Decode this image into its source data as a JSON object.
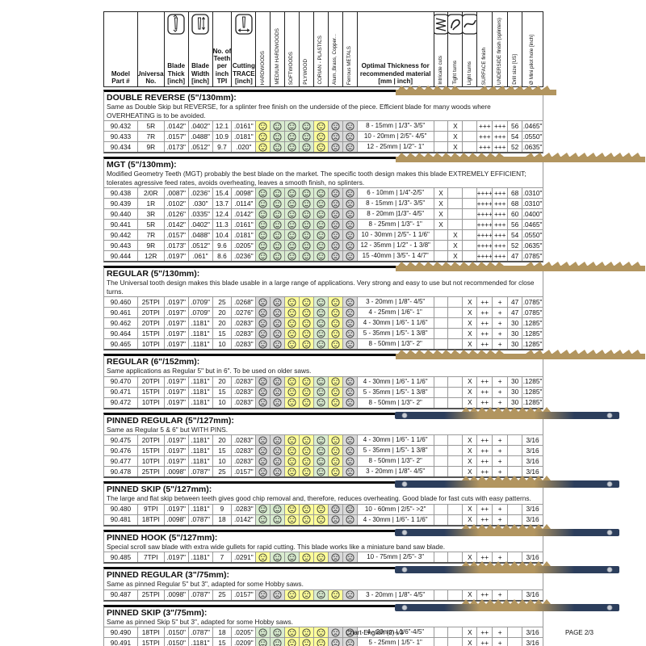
{
  "footer": {
    "left": "Chart-English (2)-v3",
    "right": "PAGE 2/3"
  },
  "header": {
    "left_columns": [
      {
        "id": "model",
        "label": "Model\nPart #"
      },
      {
        "id": "universal",
        "label": "Universal\nNo."
      },
      {
        "id": "thick",
        "label": "Blade\nThick\n[inch]",
        "icon": "blade-thickness-icon"
      },
      {
        "id": "width",
        "label": "Blade\nWidth\n[inch]",
        "icon": "blade-width-icon"
      },
      {
        "id": "tpi",
        "label": "No. of\nTeeth\nper\ninch\nTPI"
      },
      {
        "id": "trace",
        "label": "Cutting\nTRACE\n[inch]",
        "icon": "cutting-trace-icon"
      }
    ],
    "material_columns": [
      "HARDWOODS",
      "MEDIUM HARDWOODS",
      "SOFTWOODS",
      "PLYWOOD",
      "CORIAN - PLASTICS",
      "Alum.,Brass, Copper...",
      "Ferrous METALS"
    ],
    "optimal_label": "Optimal Thickness for\nrecommended material\n[mm | inch]",
    "right_columns": [
      {
        "id": "intricate",
        "label": "Intricate cuts",
        "icon": "intricate-cuts-icon"
      },
      {
        "id": "tight",
        "label": "Tight turns",
        "icon": "tight-turns-icon"
      },
      {
        "id": "light",
        "label": "Light turns",
        "icon": "light-turns-icon"
      },
      {
        "id": "surface",
        "label": "SURFACE finish"
      },
      {
        "id": "underside",
        "label": "UNDERSIDE finish (splinters)"
      },
      {
        "id": "drill",
        "label": "Drill size [US]"
      },
      {
        "id": "pilot",
        "label": "Ø Mini pilot hole [inch]"
      }
    ]
  },
  "face_legend": {
    "g": "green-smiley-good",
    "y": "yellow-neutral-ok",
    "x": "gray-frown-not-recommended"
  },
  "colors": {
    "face_green": "#d9ecd0",
    "face_yellow": "#ffff99",
    "face_gray": "#d9d9d9",
    "blade_tan": "#b2955f",
    "blade_navy": "#2c3e5c",
    "pin_gray": "#c7ccd4"
  },
  "sections": [
    {
      "title": "DOUBLE REVERSE (5\"/130mm):",
      "desc": "Same as Double Skip but REVERSE, for a splinter free finish on the underside of the piece. Efficient blade for many woods where OVERHEATING is to be avoided.",
      "blade": "plain-short-blade-image",
      "rows": [
        {
          "model": "90.432",
          "universal": "5R",
          "thick": ".0142\"",
          "width": ".0402\"",
          "tpi": "12.1",
          "trace": ".0161\"",
          "faces": [
            "y",
            "g",
            "g",
            "g",
            "y",
            "x",
            "x"
          ],
          "range": "8 - 15mm | 1/3\"- 3/5\"",
          "turn": "tight",
          "surface": "+++",
          "underside": "+++",
          "drill": "56",
          "pilot": ".0465\""
        },
        {
          "model": "90.433",
          "universal": "7R",
          "thick": ".0157\"",
          "width": ".0488\"",
          "tpi": "10.9",
          "trace": ".0181\"",
          "faces": [
            "y",
            "g",
            "g",
            "g",
            "y",
            "x",
            "x"
          ],
          "range": "10 - 20mm | 2/5\"- 4/5\"",
          "turn": "tight",
          "surface": "+++",
          "underside": "+++",
          "drill": "54",
          "pilot": ".0550\""
        },
        {
          "model": "90.434",
          "universal": "9R",
          "thick": ".0173\"",
          "width": ".0512\"",
          "tpi": "9.7",
          "trace": ".020\"",
          "faces": [
            "y",
            "g",
            "g",
            "g",
            "y",
            "x",
            "x"
          ],
          "range": "12 - 25mm | 1/2\"- 1\"",
          "turn": "tight",
          "surface": "+++",
          "underside": "+++",
          "drill": "52",
          "pilot": ".0635\""
        }
      ]
    },
    {
      "title": "MGT (5\"/130mm):",
      "desc": "Modified Geometry Teeth (MGT) probably the best blade on the market. The specific tooth design makes this blade EXTREMELY EFFICIENT; tolerates agressive feed rates, avoids overheating, leaves a smooth finish, no splinters.",
      "blade": "plain-blade-image",
      "rows": [
        {
          "model": "90.438",
          "universal": "2/0R",
          "thick": ".0087\"",
          "width": ".0236\"",
          "tpi": "15.4",
          "trace": ".0098\"",
          "faces": [
            "g",
            "g",
            "g",
            "g",
            "g",
            "x",
            "x"
          ],
          "range": "6 - 10mm | 1/4\"-2/5\"",
          "turn": "intricate",
          "surface": "++++",
          "underside": "+++",
          "drill": "68",
          "pilot": ".0310\""
        },
        {
          "model": "90.439",
          "universal": "1R",
          "thick": ".0102\"",
          "width": ".030\"",
          "tpi": "13.7",
          "trace": ".0114\"",
          "faces": [
            "g",
            "g",
            "g",
            "g",
            "g",
            "x",
            "x"
          ],
          "range": "8 - 15mm | 1/3\"- 3/5\"",
          "turn": "intricate",
          "surface": "++++",
          "underside": "+++",
          "drill": "68",
          "pilot": ".0310\""
        },
        {
          "model": "90.440",
          "universal": "3R",
          "thick": ".0126\"",
          "width": ".0335\"",
          "tpi": "12.4",
          "trace": ".0142\"",
          "faces": [
            "g",
            "g",
            "g",
            "g",
            "g",
            "x",
            "x"
          ],
          "range": "8 - 20mm |1/3\"- 4/5\"",
          "turn": "intricate",
          "surface": "++++",
          "underside": "+++",
          "drill": "60",
          "pilot": ".0400\""
        },
        {
          "model": "90.441",
          "universal": "5R",
          "thick": ".0142\"",
          "width": ".0402\"",
          "tpi": "11.3",
          "trace": ".0161\"",
          "faces": [
            "g",
            "g",
            "g",
            "g",
            "g",
            "x",
            "x"
          ],
          "range": "8 - 25mm | 1/3\"- 1\"",
          "turn": "intricate",
          "surface": "++++",
          "underside": "+++",
          "drill": "56",
          "pilot": ".0465\""
        },
        {
          "model": "90.442",
          "universal": "7R",
          "thick": ".0157\"",
          "width": ".0488\"",
          "tpi": "10.4",
          "trace": ".0181\"",
          "faces": [
            "g",
            "g",
            "g",
            "g",
            "g",
            "x",
            "x"
          ],
          "range": "10 - 30mm | 2/5\"- 1 1/6\"",
          "turn": "tight",
          "surface": "++++",
          "underside": "+++",
          "drill": "54",
          "pilot": ".0550\""
        },
        {
          "model": "90.443",
          "universal": "9R",
          "thick": ".0173\"",
          "width": ".0512\"",
          "tpi": "9.6",
          "trace": ".0205\"",
          "faces": [
            "g",
            "g",
            "g",
            "g",
            "g",
            "x",
            "x"
          ],
          "range": "12 - 35mm | 1/2\" - 1 3/8\"",
          "turn": "tight",
          "surface": "++++",
          "underside": "+++",
          "drill": "52",
          "pilot": ".0635\""
        },
        {
          "model": "90.444",
          "universal": "12R",
          "thick": ".0197\"",
          "width": ".061\"",
          "tpi": "8.6",
          "trace": ".0236\"",
          "faces": [
            "g",
            "g",
            "g",
            "g",
            "g",
            "x",
            "x"
          ],
          "range": "15 -40mm | 3/5\"- 1 4/7\"",
          "turn": "tight",
          "surface": "++++",
          "underside": "+++",
          "drill": "47",
          "pilot": ".0785\""
        }
      ]
    },
    {
      "title": "REGULAR (5\"/130mm):",
      "desc": "The Universal tooth design makes this blade usable in a large range of applications. Very strong and easy to use but not recommended for close turns.",
      "blade": "plain-blade-image",
      "rows": [
        {
          "model": "90.460",
          "universal": "25TPI",
          "thick": ".0197\"",
          "width": ".0709\"",
          "tpi": "25",
          "trace": ".0268\"",
          "faces": [
            "x",
            "x",
            "y",
            "y",
            "g",
            "y",
            "x"
          ],
          "range": "3 - 20mm | 1/8\"- 4/5\"",
          "turn": "light",
          "surface": "++",
          "underside": "+",
          "drill": "47",
          "pilot": ".0785\""
        },
        {
          "model": "90.461",
          "universal": "20TPI",
          "thick": ".0197\"",
          "width": ".0709\"",
          "tpi": "20",
          "trace": ".0276\"",
          "faces": [
            "x",
            "x",
            "y",
            "y",
            "g",
            "y",
            "x"
          ],
          "range": "4 - 25mm | 1/6\"- 1\"",
          "turn": "light",
          "surface": "++",
          "underside": "+",
          "drill": "47",
          "pilot": ".0785\""
        },
        {
          "model": "90.462",
          "universal": "20TPI",
          "thick": ".0197\"",
          "width": ".1181\"",
          "tpi": "20",
          "trace": ".0283\"",
          "faces": [
            "x",
            "x",
            "y",
            "y",
            "g",
            "y",
            "x"
          ],
          "range": "4 - 30mm | 1/6\"- 1 1/6\"",
          "turn": "light",
          "surface": "++",
          "underside": "+",
          "drill": "30",
          "pilot": ".1285\""
        },
        {
          "model": "90.464",
          "universal": "15TPI",
          "thick": ".0197\"",
          "width": ".1181\"",
          "tpi": "15",
          "trace": ".0283\"",
          "faces": [
            "x",
            "x",
            "y",
            "y",
            "g",
            "y",
            "x"
          ],
          "range": "5 - 35mm | 1/5\"- 1 3/8\"",
          "turn": "light",
          "surface": "++",
          "underside": "+",
          "drill": "30",
          "pilot": ".1285\""
        },
        {
          "model": "90.465",
          "universal": "10TPI",
          "thick": ".0197\"",
          "width": ".1181\"",
          "tpi": "10",
          "trace": ".0283\"",
          "faces": [
            "x",
            "x",
            "y",
            "y",
            "g",
            "y",
            "x"
          ],
          "range": "8 - 50mm | 1/3\"- 2\"",
          "turn": "light",
          "surface": "++",
          "underside": "+",
          "drill": "30",
          "pilot": ".1285\""
        }
      ]
    },
    {
      "title": "REGULAR (6\"/152mm):",
      "desc": "Same applications as Regular 5\" but in 6\". To be used on older saws.",
      "blade": "plain-blade-image",
      "rows": [
        {
          "model": "90.470",
          "universal": "20TPI",
          "thick": ".0197\"",
          "width": ".1181\"",
          "tpi": "20",
          "trace": ".0283\"",
          "faces": [
            "x",
            "x",
            "y",
            "y",
            "g",
            "y",
            "x"
          ],
          "range": "4 - 30mm | 1/6\"- 1 1/6\"",
          "turn": "light",
          "surface": "++",
          "underside": "+",
          "drill": "30",
          "pilot": ".1285\""
        },
        {
          "model": "90.471",
          "universal": "15TPI",
          "thick": ".0197\"",
          "width": ".1181\"",
          "tpi": "15",
          "trace": ".0283\"",
          "faces": [
            "x",
            "x",
            "y",
            "y",
            "g",
            "y",
            "x"
          ],
          "range": "5 - 35mm | 1/5\"- 1 3/8\"",
          "turn": "light",
          "surface": "++",
          "underside": "+",
          "drill": "30",
          "pilot": ".1285\""
        },
        {
          "model": "90.472",
          "universal": "10TPI",
          "thick": ".0197\"",
          "width": ".1181\"",
          "tpi": "10",
          "trace": ".0283\"",
          "faces": [
            "x",
            "x",
            "y",
            "y",
            "g",
            "y",
            "x"
          ],
          "range": "8 - 50mm | 1/3\"- 2\"",
          "turn": "light",
          "surface": "++",
          "underside": "+",
          "drill": "30",
          "pilot": ".1285\""
        }
      ]
    },
    {
      "title": "PINNED REGULAR (5\"/127mm):",
      "desc": "Same as Regular 5 & 6\" but WITH PINS.",
      "blade": "pinned-blade-image",
      "rows": [
        {
          "model": "90.475",
          "universal": "20TPI",
          "thick": ".0197\"",
          "width": ".1181\"",
          "tpi": "20",
          "trace": ".0283\"",
          "faces": [
            "x",
            "x",
            "y",
            "y",
            "g",
            "y",
            "x"
          ],
          "range": "4 - 30mm | 1/6\"- 1 1/6\"",
          "turn": "light",
          "surface": "++",
          "underside": "+",
          "drill": "",
          "pilot": "3/16"
        },
        {
          "model": "90.476",
          "universal": "15TPI",
          "thick": ".0197\"",
          "width": ".1181\"",
          "tpi": "15",
          "trace": ".0283\"",
          "faces": [
            "x",
            "x",
            "y",
            "y",
            "g",
            "y",
            "x"
          ],
          "range": "5 - 35mm | 1/5\"- 1 3/8\"",
          "turn": "light",
          "surface": "++",
          "underside": "+",
          "drill": "",
          "pilot": "3/16"
        },
        {
          "model": "90.477",
          "universal": "10TPI",
          "thick": ".0197\"",
          "width": ".1181\"",
          "tpi": "10",
          "trace": ".0283\"",
          "faces": [
            "x",
            "x",
            "y",
            "y",
            "g",
            "y",
            "x"
          ],
          "range": "8 - 50mm | 1/3\"- 2\"",
          "turn": "light",
          "surface": "++",
          "underside": "+",
          "drill": "",
          "pilot": "3/16"
        },
        {
          "model": "90.478",
          "universal": "25TPI",
          "thick": ".0098\"",
          "width": ".0787\"",
          "tpi": "25",
          "trace": ".0157\"",
          "faces": [
            "x",
            "x",
            "y",
            "y",
            "g",
            "y",
            "x"
          ],
          "range": "3 - 20mm | 1/8\"- 4/5\"",
          "turn": "light",
          "surface": "++",
          "underside": "+",
          "drill": "",
          "pilot": "3/16"
        }
      ]
    },
    {
      "title": "PINNED SKIP (5\"/127mm):",
      "desc": "The large and flat skip between teeth gives good chip removal and, therefore, reduces overheating. Good blade for fast cuts with easy patterns.",
      "blade": "pinned-blade-image",
      "rows": [
        {
          "model": "90.480",
          "universal": "9TPI",
          "thick": ".0197\"",
          "width": ".1181\"",
          "tpi": "9",
          "trace": ".0283\"",
          "faces": [
            "g",
            "g",
            "y",
            "y",
            "y",
            "x",
            "x"
          ],
          "range": "10 - 60mm | 2/5\"- >2\"",
          "turn": "light",
          "surface": "++",
          "underside": "+",
          "drill": "",
          "pilot": "3/16"
        },
        {
          "model": "90.481",
          "universal": "18TPI",
          "thick": ".0098\"",
          "width": ".0787\"",
          "tpi": "18",
          "trace": ".0142\"",
          "faces": [
            "g",
            "g",
            "y",
            "y",
            "y",
            "x",
            "x"
          ],
          "range": "4 - 30mm | 1/6\"- 1 1/6\"",
          "turn": "light",
          "surface": "++",
          "underside": "+",
          "drill": "",
          "pilot": "3/16"
        }
      ]
    },
    {
      "title": "PINNED HOOK (5\"/127mm):",
      "desc": "Special scroll saw blade with extra wide gullets for rapid cutting. This blade works like a miniature band saw blade.",
      "blade": "pinned-blade-image",
      "rows": [
        {
          "model": "90.485",
          "universal": "7TPI",
          "thick": ".0197\"",
          "width": ".1181\"",
          "tpi": "7",
          "trace": ".0291\"",
          "faces": [
            "y",
            "g",
            "g",
            "y",
            "y",
            "x",
            "x"
          ],
          "range": "10 - 75mm | 2/5\"- 3\"",
          "turn": "light",
          "surface": "++",
          "underside": "+",
          "drill": "",
          "pilot": "3/16"
        }
      ]
    },
    {
      "title": "PINNED REGULAR (3\"/75mm):",
      "desc": "Same as pinned Regular 5\" but 3\", adapted for some Hobby saws.",
      "blade": "pinned-blade-image",
      "rows": [
        {
          "model": "90.487",
          "universal": "25TPI",
          "thick": ".0098\"",
          "width": ".0787\"",
          "tpi": "25",
          "trace": ".0157\"",
          "faces": [
            "x",
            "x",
            "y",
            "y",
            "g",
            "y",
            "x"
          ],
          "range": "3 - 20mm | 1/8\"- 4/5\"",
          "turn": "light",
          "surface": "++",
          "underside": "+",
          "drill": "",
          "pilot": "3/16"
        }
      ]
    },
    {
      "title": "PINNED SKIP (3\"/75mm):",
      "desc": "Same as pinned Skip 5\" but 3\", adapted for some Hobby saws.",
      "blade": "pinned-blade-image",
      "rows": [
        {
          "model": "90.490",
          "universal": "18TPI",
          "thick": ".0150\"",
          "width": ".0787\"",
          "tpi": "18",
          "trace": ".0205\"",
          "faces": [
            "g",
            "g",
            "y",
            "y",
            "y",
            "x",
            "x"
          ],
          "range": "4 - 20mm | 1/6\"-4/5\"",
          "turn": "light",
          "surface": "++",
          "underside": "+",
          "drill": "",
          "pilot": "3/16"
        },
        {
          "model": "90.491",
          "universal": "15TPI",
          "thick": ".0150\"",
          "width": ".1181\"",
          "tpi": "15",
          "trace": ".0209\"",
          "faces": [
            "g",
            "g",
            "y",
            "y",
            "y",
            "x",
            "x"
          ],
          "range": "5 - 25mm | 1/5\"- 1\"",
          "turn": "light",
          "surface": "++",
          "underside": "+",
          "drill": "",
          "pilot": "3/16"
        }
      ]
    }
  ]
}
